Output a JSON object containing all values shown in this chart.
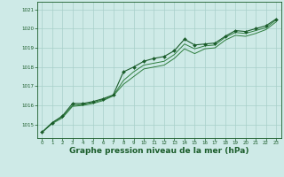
{
  "background_color": "#ceeae7",
  "grid_color": "#a8cfc9",
  "line_color_main": "#1a5c2a",
  "line_color_secondary": "#2e7d3e",
  "xlabel": "Graphe pression niveau de la mer (hPa)",
  "xlabel_fontsize": 6.5,
  "xlim": [
    -0.5,
    23.5
  ],
  "ylim": [
    1014.3,
    1021.4
  ],
  "yticks": [
    1015,
    1016,
    1017,
    1018,
    1019,
    1020,
    1021
  ],
  "xticks": [
    0,
    1,
    2,
    3,
    4,
    5,
    6,
    7,
    8,
    9,
    10,
    11,
    12,
    13,
    14,
    15,
    16,
    17,
    18,
    19,
    20,
    21,
    22,
    23
  ],
  "series1": {
    "x": [
      0,
      1,
      2,
      3,
      4,
      5,
      6,
      7,
      8,
      9,
      10,
      11,
      12,
      13,
      14,
      15,
      16,
      17,
      18,
      19,
      20,
      21,
      22,
      23
    ],
    "y": [
      1014.6,
      1015.1,
      1015.45,
      1016.1,
      1016.1,
      1016.2,
      1016.35,
      1016.55,
      1017.75,
      1018.0,
      1018.3,
      1018.45,
      1018.55,
      1018.85,
      1019.45,
      1019.15,
      1019.2,
      1019.25,
      1019.6,
      1019.9,
      1019.85,
      1020.0,
      1020.15,
      1020.5
    ]
  },
  "series2": {
    "x": [
      0,
      1,
      2,
      3,
      4,
      5,
      6,
      7,
      8,
      9,
      10,
      11,
      12,
      13,
      14,
      15,
      16,
      17,
      18,
      19,
      20,
      21,
      22,
      23
    ],
    "y": [
      1014.6,
      1015.1,
      1015.4,
      1016.0,
      1016.05,
      1016.15,
      1016.3,
      1016.5,
      1017.3,
      1017.75,
      1018.1,
      1018.2,
      1018.3,
      1018.65,
      1019.2,
      1018.95,
      1019.1,
      1019.15,
      1019.55,
      1019.8,
      1019.75,
      1019.9,
      1020.05,
      1020.45
    ]
  },
  "series3": {
    "x": [
      0,
      1,
      2,
      3,
      4,
      5,
      6,
      7,
      8,
      9,
      10,
      11,
      12,
      13,
      14,
      15,
      16,
      17,
      18,
      19,
      20,
      21,
      22,
      23
    ],
    "y": [
      1014.6,
      1015.05,
      1015.35,
      1015.95,
      1016.0,
      1016.1,
      1016.25,
      1016.5,
      1017.1,
      1017.5,
      1017.9,
      1018.0,
      1018.1,
      1018.45,
      1018.95,
      1018.7,
      1018.95,
      1019.0,
      1019.4,
      1019.65,
      1019.6,
      1019.75,
      1019.95,
      1020.35
    ]
  }
}
